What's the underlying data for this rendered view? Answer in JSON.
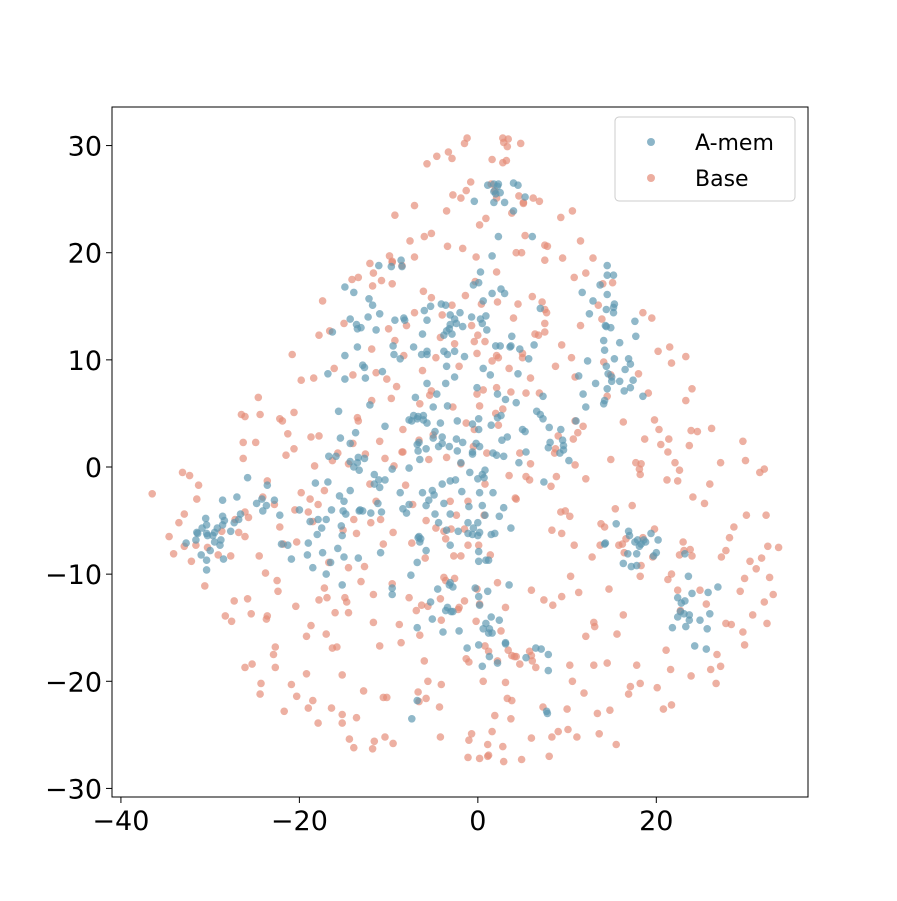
{
  "chart_data": {
    "type": "scatter",
    "title": "",
    "xlabel": "",
    "ylabel": "",
    "xlim": [
      -41,
      37
    ],
    "ylim": [
      -30.8,
      33.6
    ],
    "grid": false,
    "legend": {
      "position": "top-right"
    },
    "xticks": [
      -40,
      -20,
      0,
      20
    ],
    "yticks": [
      -30,
      -20,
      -10,
      0,
      10,
      20,
      30
    ],
    "series": [
      {
        "name": "A-mem",
        "color": "#5b96b0",
        "points": []
      },
      {
        "name": "Base",
        "color": "#e48a76",
        "points": []
      }
    ]
  }
}
